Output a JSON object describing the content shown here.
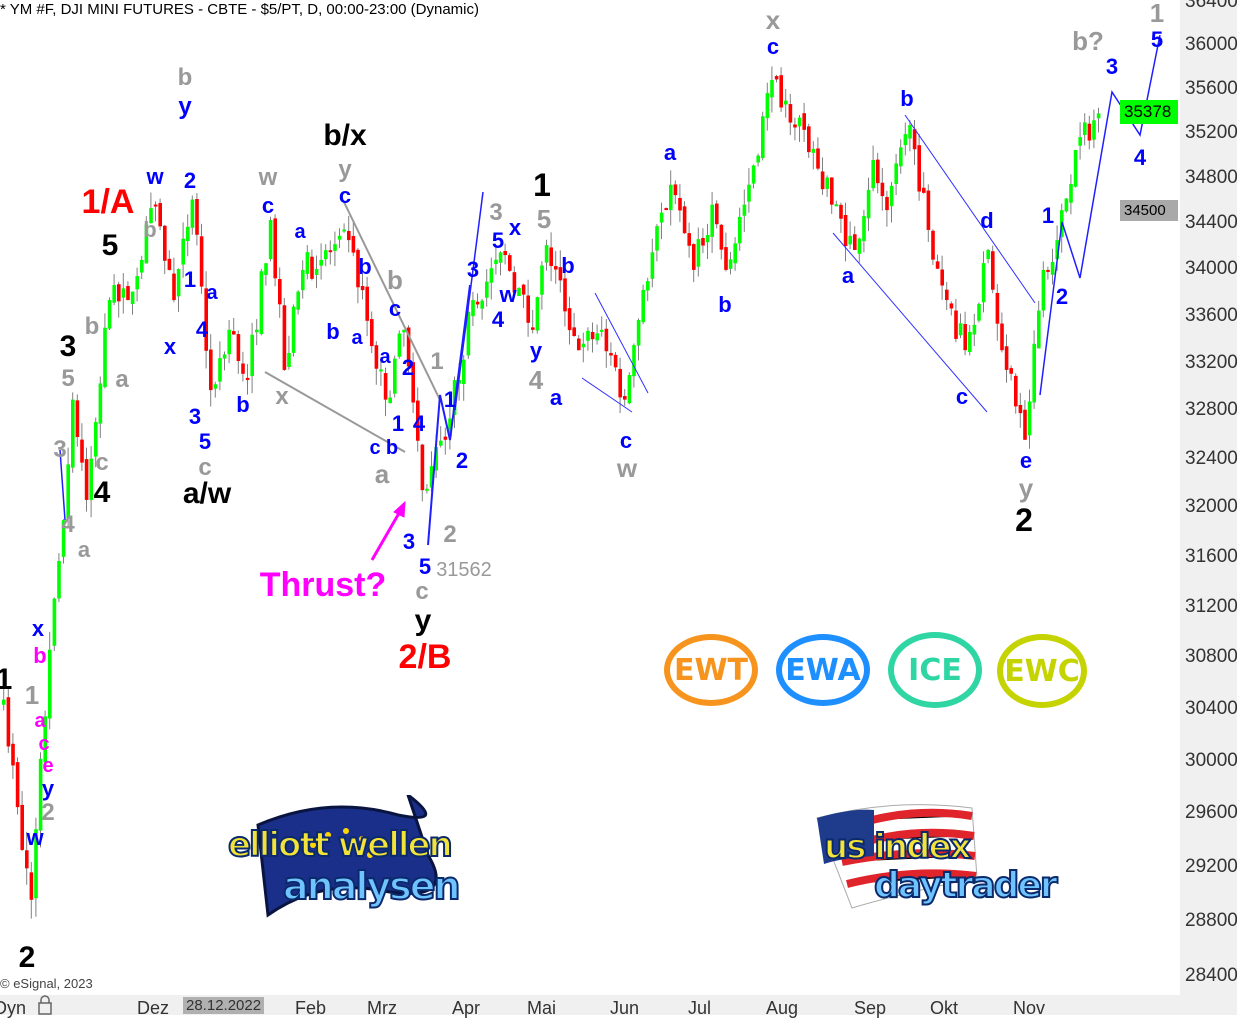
{
  "title": "* YM #F, DJI MINI FUTURES - CBTE - $5/PT, D, 00:00-23:00 (Dynamic)",
  "copyright": "© eSignal, 2023",
  "price_tags": {
    "last": "35378",
    "last_color": "#00ff00",
    "level": "34500",
    "level_color": "#a9a9a9"
  },
  "x_axis": {
    "mode_label": "Dyn",
    "lock_icon": "lock-icon",
    "cursor_date": "28.12.2022",
    "months": [
      "Dez",
      "Feb",
      "Mrz",
      "Apr",
      "Mai",
      "Jun",
      "Jul",
      "Aug",
      "Sep",
      "Okt",
      "Nov"
    ]
  },
  "logos": {
    "badges": [
      {
        "text": "EWT",
        "color": "#f7941d"
      },
      {
        "text": "EWA",
        "color": "#1e8fff"
      },
      {
        "text": "ICE",
        "color": "#2fd6a4"
      },
      {
        "text": "EWC",
        "color": "#c5d300"
      }
    ],
    "ewa_line1": "elliott wellen",
    "ewa_line2": "analysen",
    "usi_line1": "us index",
    "usi_line2": "daytrader"
  },
  "colors": {
    "up": "#00ff00",
    "down": "#ff0000",
    "wick": "#808080",
    "blue": "#0000ff",
    "gray": "#999999",
    "black": "#000000",
    "red": "#ff0000",
    "magenta": "#ff00ff"
  },
  "chart_data": {
    "type": "candlestick",
    "title": "* YM #F, DJI MINI FUTURES - CBTE - $5/PT, D, 00:00-23:00 (Dynamic)",
    "y_scale": "log",
    "ylim": [
      28300,
      36450
    ],
    "y_ticks": [
      "36400",
      "36000",
      "35600",
      "35200",
      "34800",
      "34400",
      "34000",
      "33600",
      "33200",
      "32800",
      "32400",
      "32000",
      "31600",
      "31200",
      "30800",
      "30400",
      "30000",
      "29600",
      "29200",
      "28800",
      "28400"
    ],
    "x_ticks": [
      "Dez",
      "Feb",
      "Mrz",
      "Apr",
      "Mai",
      "Jun",
      "Jul",
      "Aug",
      "Sep",
      "Okt",
      "Nov"
    ],
    "last_price": 35378,
    "marked_low": 31562,
    "pivots_bar_price": [
      [
        0,
        30470
      ],
      [
        4,
        29325
      ],
      [
        6,
        28955
      ],
      [
        10,
        30860
      ],
      [
        13,
        31895
      ],
      [
        15,
        32890
      ],
      [
        18,
        32060
      ],
      [
        23,
        33735
      ],
      [
        27,
        33735
      ],
      [
        33,
        34565
      ],
      [
        37,
        33735
      ],
      [
        41,
        34610
      ],
      [
        45,
        32970
      ],
      [
        49,
        33480
      ],
      [
        53,
        33055
      ],
      [
        58,
        34430
      ],
      [
        61,
        33140
      ],
      [
        65,
        33995
      ],
      [
        75,
        34254
      ],
      [
        83,
        32890
      ],
      [
        87,
        33480
      ],
      [
        91,
        32140
      ],
      [
        96,
        32555
      ],
      [
        102,
        33735
      ],
      [
        109,
        34124
      ],
      [
        115,
        33480
      ],
      [
        118,
        34210
      ],
      [
        125,
        33307
      ],
      [
        130,
        33480
      ],
      [
        135,
        32890
      ],
      [
        139,
        33822
      ],
      [
        145,
        34740
      ],
      [
        150,
        33995
      ],
      [
        154,
        34565
      ],
      [
        157,
        33995
      ],
      [
        161,
        34565
      ],
      [
        167,
        35680
      ],
      [
        174,
        35230
      ],
      [
        180,
        34565
      ],
      [
        185,
        34168
      ],
      [
        189,
        34960
      ],
      [
        192,
        34517
      ],
      [
        197,
        35273
      ],
      [
        201,
        34343
      ],
      [
        205,
        33735
      ],
      [
        209,
        33307
      ],
      [
        214,
        34168
      ],
      [
        218,
        33140
      ],
      [
        222,
        32555
      ],
      [
        226,
        33995
      ],
      [
        229,
        34254
      ],
      [
        233,
        35050
      ],
      [
        238,
        35378
      ]
    ]
  },
  "annotations": [
    {
      "text": "1/A",
      "color": "#ff0000"
    },
    {
      "text": "5",
      "color": "#000"
    },
    {
      "text": "3",
      "color": "#000"
    },
    {
      "text": "4",
      "color": "#000"
    },
    {
      "text": "2",
      "color": "#000"
    },
    {
      "text": "1",
      "color": "#000"
    },
    {
      "text": "w",
      "color": "#0000ff"
    },
    {
      "text": "2",
      "color": "#0000ff"
    },
    {
      "text": "b",
      "color": "#999"
    },
    {
      "text": "y",
      "color": "#0000ff"
    },
    {
      "text": "b",
      "color": "#999"
    },
    {
      "text": "1",
      "color": "#0000ff"
    },
    {
      "text": "a",
      "color": "#0000ff"
    },
    {
      "text": "x",
      "color": "#0000ff"
    },
    {
      "text": "4",
      "color": "#0000ff"
    },
    {
      "text": "b",
      "color": "#999"
    },
    {
      "text": "a",
      "color": "#999"
    },
    {
      "text": "5",
      "color": "#999"
    },
    {
      "text": "3",
      "color": "#999"
    },
    {
      "text": "c",
      "color": "#999"
    },
    {
      "text": "4",
      "color": "#999"
    },
    {
      "text": "a",
      "color": "#999"
    },
    {
      "text": "3",
      "color": "#0000ff"
    },
    {
      "text": "5",
      "color": "#0000ff"
    },
    {
      "text": "c",
      "color": "#999"
    },
    {
      "text": "b",
      "color": "#0000ff"
    },
    {
      "text": "a/w",
      "color": "#000"
    },
    {
      "text": "w",
      "color": "#999"
    },
    {
      "text": "c",
      "color": "#0000ff"
    },
    {
      "text": "a",
      "color": "#0000ff"
    },
    {
      "text": "x",
      "color": "#999"
    },
    {
      "text": "b/x",
      "color": "#000"
    },
    {
      "text": "y",
      "color": "#999"
    },
    {
      "text": "c",
      "color": "#0000ff"
    },
    {
      "text": "b",
      "color": "#0000ff"
    },
    {
      "text": "b",
      "color": "#0000ff"
    },
    {
      "text": "a",
      "color": "#0000ff"
    },
    {
      "text": "b",
      "color": "#999"
    },
    {
      "text": "c",
      "color": "#0000ff"
    },
    {
      "text": "a",
      "color": "#0000ff"
    },
    {
      "text": "2",
      "color": "#0000ff"
    },
    {
      "text": "1",
      "color": "#0000ff"
    },
    {
      "text": "4",
      "color": "#0000ff"
    },
    {
      "text": "b",
      "color": "#0000ff"
    },
    {
      "text": "c",
      "color": "#0000ff"
    },
    {
      "text": "a",
      "color": "#999"
    },
    {
      "text": "1",
      "color": "#999"
    },
    {
      "text": "1",
      "color": "#0000ff"
    },
    {
      "text": "2",
      "color": "#0000ff"
    },
    {
      "text": "3",
      "color": "#0000ff"
    },
    {
      "text": "5",
      "color": "#0000ff"
    },
    {
      "text": "2",
      "color": "#999"
    },
    {
      "text": "31562",
      "color": "#999"
    },
    {
      "text": "c",
      "color": "#999"
    },
    {
      "text": "y",
      "color": "#000"
    },
    {
      "text": "2/B",
      "color": "#ff0000"
    },
    {
      "text": "Thrust?",
      "color": "#ff00ff"
    },
    {
      "text": "3",
      "color": "#0000ff"
    },
    {
      "text": "3",
      "color": "#999"
    },
    {
      "text": "x",
      "color": "#0000ff"
    },
    {
      "text": "5",
      "color": "#0000ff"
    },
    {
      "text": "w",
      "color": "#0000ff"
    },
    {
      "text": "4",
      "color": "#0000ff"
    },
    {
      "text": "1",
      "color": "#000"
    },
    {
      "text": "5",
      "color": "#999"
    },
    {
      "text": "b",
      "color": "#0000ff"
    },
    {
      "text": "y",
      "color": "#0000ff"
    },
    {
      "text": "4",
      "color": "#999"
    },
    {
      "text": "a",
      "color": "#0000ff"
    },
    {
      "text": "c",
      "color": "#0000ff"
    },
    {
      "text": "w",
      "color": "#999"
    },
    {
      "text": "a",
      "color": "#0000ff"
    },
    {
      "text": "b",
      "color": "#0000ff"
    },
    {
      "text": "x",
      "color": "#999"
    },
    {
      "text": "c",
      "color": "#0000ff"
    },
    {
      "text": "b",
      "color": "#0000ff"
    },
    {
      "text": "a",
      "color": "#0000ff"
    },
    {
      "text": "c",
      "color": "#0000ff"
    },
    {
      "text": "d",
      "color": "#0000ff"
    },
    {
      "text": "e",
      "color": "#0000ff"
    },
    {
      "text": "y",
      "color": "#999"
    },
    {
      "text": "2",
      "color": "#000"
    },
    {
      "text": "1",
      "color": "#0000ff"
    },
    {
      "text": "2",
      "color": "#0000ff"
    },
    {
      "text": "b?",
      "color": "#999"
    },
    {
      "text": "3",
      "color": "#0000ff"
    },
    {
      "text": "4",
      "color": "#0000ff"
    },
    {
      "text": "1",
      "color": "#999"
    },
    {
      "text": "5",
      "color": "#0000ff"
    },
    {
      "text": "x",
      "color": "#0000ff"
    },
    {
      "text": "b",
      "color": "#ff00ff"
    },
    {
      "text": "1",
      "color": "#999"
    },
    {
      "text": "a",
      "color": "#ff00ff"
    },
    {
      "text": "c",
      "color": "#ff00ff"
    },
    {
      "text": "e",
      "color": "#ff00ff"
    },
    {
      "text": "y",
      "color": "#0000ff"
    },
    {
      "text": "2",
      "color": "#999"
    },
    {
      "text": "w",
      "color": "#0000ff"
    }
  ]
}
